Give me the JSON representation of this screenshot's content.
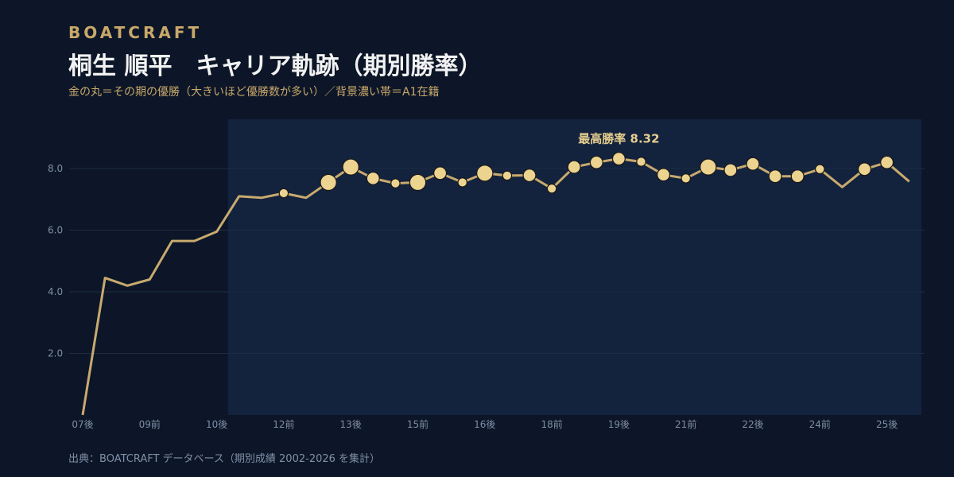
{
  "brand": "BOATCRAFT",
  "title": "桐生 順平　キャリア軌跡（期別勝率）",
  "subtitle": "金の丸＝その期の優勝（大きいほど優勝数が多い）／背景濃い帯＝A1在籍",
  "source": "出典：BOATCRAFT データベース（期別成績 2002-2026 を集計）",
  "colors": {
    "background": "#0c1628",
    "a1_band": "#13223d",
    "line": "#c8aa6e",
    "dot_fill": "#ecd490",
    "dot_stroke": "#1a1a1a",
    "grid": "#1e2c45"
  },
  "chart_data": {
    "type": "line",
    "title": "桐生 順平　キャリア軌跡（期別勝率）",
    "ylabel": "",
    "xlabel": "",
    "ylim": [
      0,
      9.6
    ],
    "yticks": [
      2.0,
      4.0,
      6.0,
      8.0
    ],
    "grid": true,
    "x_tick_labels": [
      "07後",
      "09前",
      "10後",
      "12前",
      "13後",
      "15前",
      "16後",
      "18前",
      "19後",
      "21前",
      "22後",
      "24前",
      "25後"
    ],
    "x_tick_every": 3,
    "a1_band_start_index": 7,
    "series": [
      {
        "values": [
          0.0,
          4.45,
          4.2,
          4.4,
          5.65,
          5.65,
          5.95,
          7.1,
          7.05,
          7.2,
          7.05,
          7.55,
          8.05,
          7.68,
          7.52,
          7.55,
          7.85,
          7.55,
          7.85,
          7.77,
          7.78,
          7.35,
          8.05,
          8.2,
          8.32,
          8.22,
          7.8,
          7.68,
          8.05,
          7.95,
          8.15,
          7.75,
          7.75,
          7.98,
          7.4,
          7.98,
          8.2,
          7.58
        ],
        "wins": [
          0,
          0,
          0,
          0,
          0,
          0,
          0,
          0,
          0,
          1,
          0,
          3,
          3,
          2,
          1,
          3,
          2,
          1,
          3,
          1,
          2,
          1,
          2,
          2,
          2,
          1,
          2,
          1,
          3,
          2,
          2,
          2,
          2,
          1,
          0,
          2,
          2,
          0
        ]
      }
    ],
    "annotations": [
      {
        "text": "最高勝率 8.32",
        "index": 24
      }
    ]
  }
}
